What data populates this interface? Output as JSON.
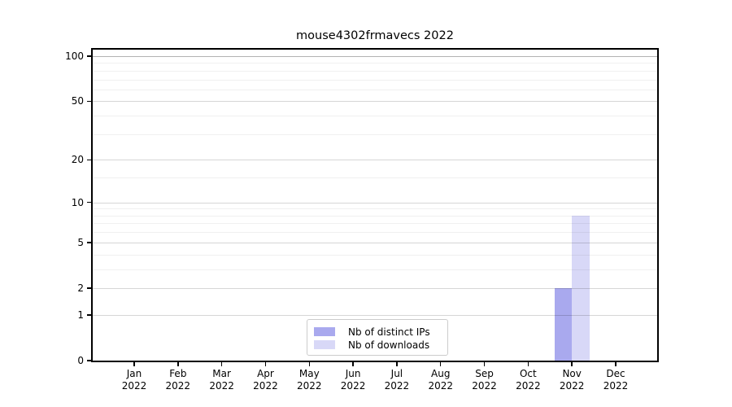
{
  "chart_data": {
    "type": "bar",
    "title": "mouse4302frmavecs 2022",
    "categories": [
      "Jan",
      "Feb",
      "Mar",
      "Apr",
      "May",
      "Jun",
      "Jul",
      "Aug",
      "Sep",
      "Oct",
      "Nov",
      "Dec"
    ],
    "year": "2022",
    "series": [
      {
        "name": "Nb of distinct IPs",
        "color": "#a9a9ee",
        "values": [
          0,
          0,
          0,
          0,
          0,
          0,
          0,
          0,
          0,
          0,
          2,
          0
        ]
      },
      {
        "name": "Nb of downloads",
        "color": "#d8d8f7",
        "values": [
          0,
          0,
          0,
          0,
          0,
          0,
          0,
          0,
          0,
          0,
          8,
          0
        ]
      }
    ],
    "yscale": "log1p",
    "ylim": [
      0,
      100
    ],
    "yticks": [
      0,
      1,
      2,
      5,
      10,
      20,
      50,
      100
    ],
    "minor_gridlines": [
      3,
      4,
      6,
      7,
      8,
      9,
      15,
      30,
      40,
      60,
      70,
      80,
      90
    ],
    "grid": true,
    "legend_position": "lower center inside plot",
    "xlabel": "",
    "ylabel": ""
  }
}
